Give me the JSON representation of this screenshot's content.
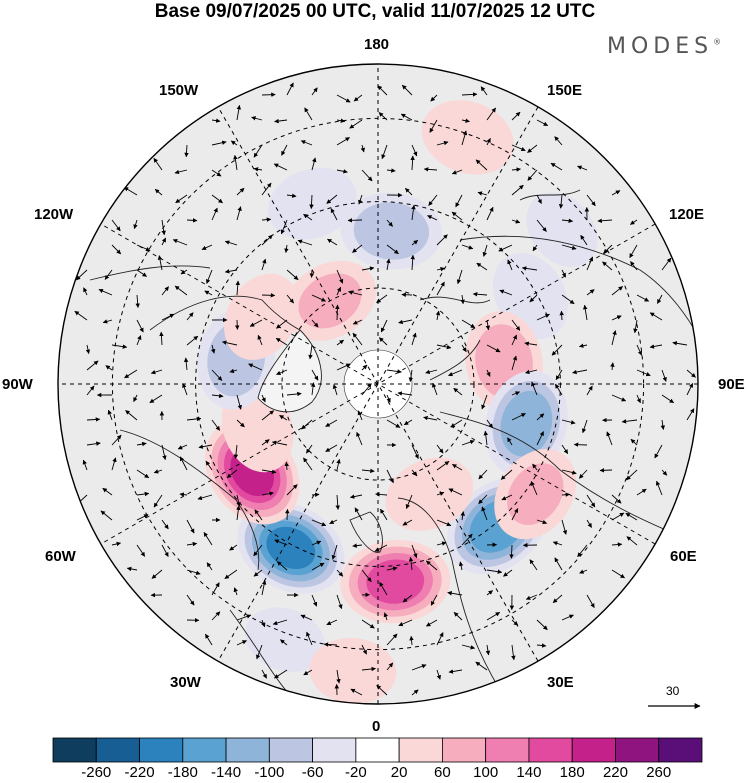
{
  "title": "Base 09/07/2025 00 UTC, valid 11/07/2025 12 UTC",
  "brand": "MODES",
  "brand_mark": "®",
  "longitude_labels": {
    "n180": "180",
    "e150": "150E",
    "e120": "120E",
    "e90": "90E",
    "e60": "60E",
    "e30": "30E",
    "s0": "0",
    "w30": "30W",
    "w60": "60W",
    "w90": "90W",
    "w120": "120W",
    "w150": "150W"
  },
  "wind_scale_label": "30",
  "colorbar": {
    "ticks": [
      "-260",
      "-220",
      "-180",
      "-140",
      "-100",
      "-60",
      "-20",
      "20",
      "60",
      "100",
      "140",
      "180",
      "220",
      "260"
    ],
    "colors": [
      "#0e3d5e",
      "#165e93",
      "#2b82bd",
      "#5aa2d1",
      "#8fb4d9",
      "#bcc6e2",
      "#e3e2f1",
      "#ffffff",
      "#fbd8d8",
      "#f6aebf",
      "#ef7fb0",
      "#e24a9f",
      "#c5218a",
      "#8f1480",
      "#5a0f78"
    ]
  },
  "anomalies": [
    {
      "lon": 5,
      "r": 0.62,
      "v": 170
    },
    {
      "lon": 40,
      "r": 0.58,
      "v": -180
    },
    {
      "lon": -28,
      "r": 0.58,
      "v": -200
    },
    {
      "lon": -55,
      "r": 0.48,
      "v": 200
    },
    {
      "lon": -70,
      "r": 0.4,
      "v": 60
    },
    {
      "lon": -100,
      "r": 0.45,
      "v": -100
    },
    {
      "lon": -120,
      "r": 0.42,
      "v": 60
    },
    {
      "lon": -150,
      "r": 0.3,
      "v": 80
    },
    {
      "lon": -160,
      "r": 0.6,
      "v": -60
    },
    {
      "lon": 175,
      "r": 0.48,
      "v": -100
    },
    {
      "lon": 160,
      "r": 0.82,
      "v": 70
    },
    {
      "lon": 120,
      "r": 0.55,
      "v": -60
    },
    {
      "lon": 100,
      "r": 0.4,
      "v": 100
    },
    {
      "lon": 75,
      "r": 0.48,
      "v": -140
    },
    {
      "lon": 55,
      "r": 0.6,
      "v": 80
    },
    {
      "lon": 25,
      "r": 0.38,
      "v": 60
    },
    {
      "lon": 130,
      "r": 0.75,
      "v": -40
    },
    {
      "lon": -20,
      "r": 0.85,
      "v": -40
    },
    {
      "lon": -5,
      "r": 0.9,
      "v": 50
    }
  ]
}
